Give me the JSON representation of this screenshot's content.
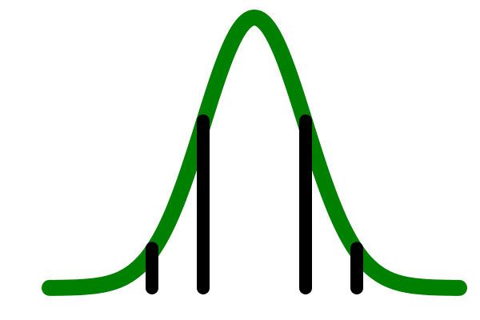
{
  "diagram": {
    "curve": {
      "shape": "gaussian",
      "mean": 0,
      "std_dev": 1,
      "x_range": [
        -4,
        4
      ],
      "color": "#008000"
    },
    "markers": [
      {
        "name": "marker-minus-2sd",
        "x": -2,
        "color": "#000000"
      },
      {
        "name": "marker-minus-1sd",
        "x": -1,
        "color": "#000000"
      },
      {
        "name": "marker-plus-1sd",
        "x": 1,
        "color": "#000000"
      },
      {
        "name": "marker-plus-2sd",
        "x": 2,
        "color": "#000000"
      }
    ]
  }
}
